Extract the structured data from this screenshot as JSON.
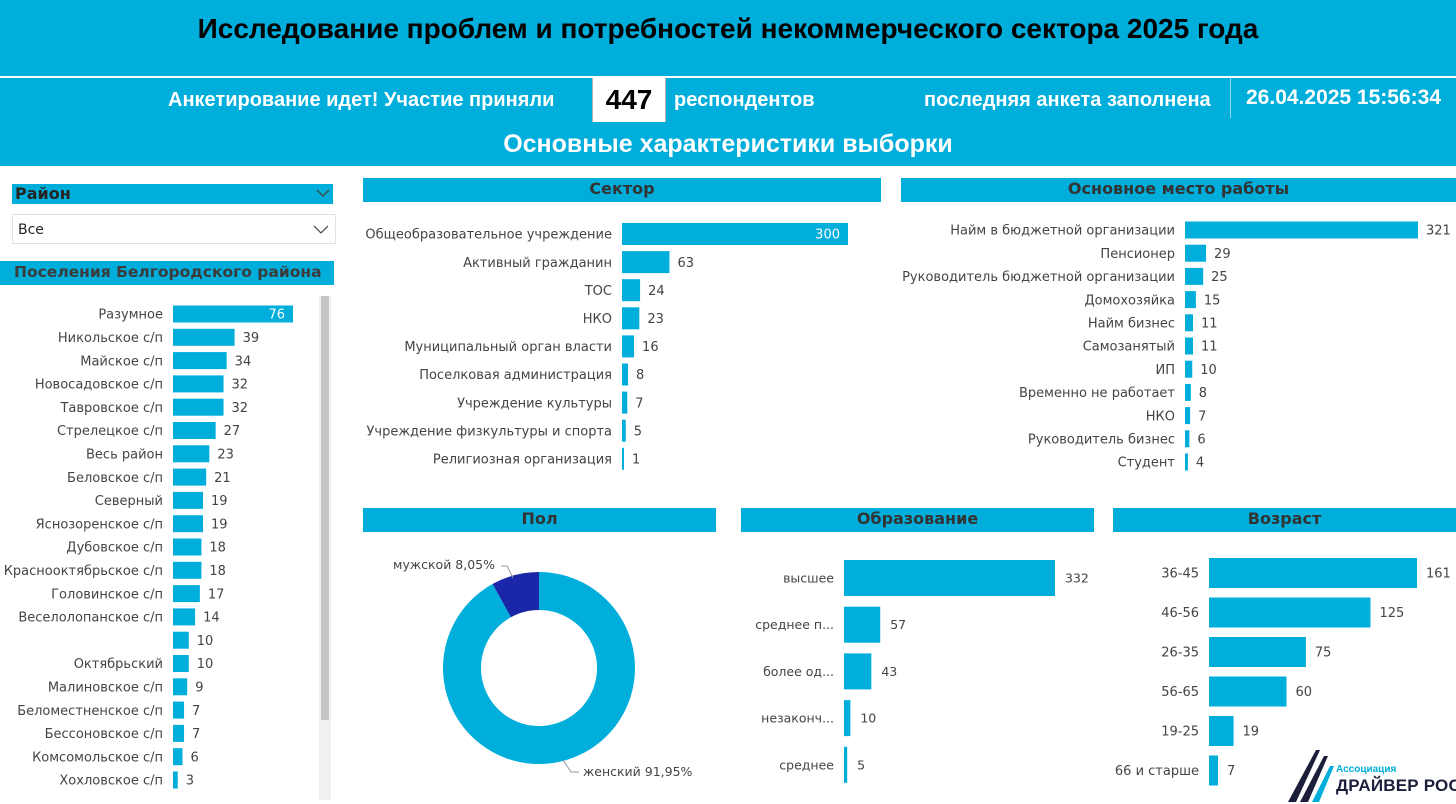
{
  "header": {
    "title": "Исследование проблем и потребностей некоммерческого сектора 2025 года",
    "status_prefix": "Анкетирование идет! Участие  приняли",
    "respondents_count": "447",
    "respondents_suffix": "респондентов",
    "last_form_label": "последняя анкета заполнена",
    "last_form_datetime": "26.04.2025 15:56:34",
    "subtitle": "Основные характеристики выборки"
  },
  "filter": {
    "label": "Район",
    "selected": "Все"
  },
  "colors": {
    "accent": "#00AEDB",
    "dark_blue": "#1a27a8",
    "text": "#252423"
  },
  "icons": [
    "chevron-down-icon",
    "scroll-bar",
    "logo-mark-icon"
  ],
  "settlements": {
    "title": "Поселения Белгородского района",
    "chart_data": {
      "type": "bar",
      "orientation": "horizontal",
      "categories": [
        "Разумное",
        "Никольское с/п",
        "Майское с/п",
        "Новосадовское с/п",
        "Тавровское с/п",
        "Стрелецкое с/п",
        "Весь район",
        "Беловское с/п",
        "Северный",
        "Яснозоренское с/п",
        "Дубовское с/п",
        "Краснооктябрьское с/п",
        "Головинское с/п",
        "Веселолопанское с/п",
        "",
        "Октябрьский",
        "Малиновское с/п",
        "Беломестненское с/п",
        "Бессоновское с/п",
        "Комсомольское с/п",
        "Хохловское с/п"
      ],
      "values": [
        76,
        39,
        34,
        32,
        32,
        27,
        23,
        21,
        19,
        19,
        18,
        18,
        17,
        14,
        10,
        10,
        9,
        7,
        7,
        6,
        3
      ]
    }
  },
  "sector": {
    "title": "Сектор",
    "chart_data": {
      "type": "bar",
      "orientation": "horizontal",
      "categories": [
        "Общеобразовательное учреждение",
        "Активный гражданин",
        "ТОС",
        "НКО",
        "Муниципальный орган власти",
        "Поселковая администрация",
        "Учреждение культуры",
        "Учреждение физкультуры и спорта",
        "Религиозная организация"
      ],
      "values": [
        300,
        63,
        24,
        23,
        16,
        8,
        7,
        5,
        1
      ]
    }
  },
  "workplace": {
    "title": "Основное место работы",
    "chart_data": {
      "type": "bar",
      "orientation": "horizontal",
      "categories": [
        "Найм в бюджетной организации",
        "Пенсионер",
        "Руководитель бюджетной организации",
        "Домохозяйка",
        "Найм бизнес",
        "Самозанятый",
        "ИП",
        "Временно не работает",
        "НКО",
        "Руководитель бизнес",
        "Студент"
      ],
      "values": [
        321,
        29,
        25,
        15,
        11,
        11,
        10,
        8,
        7,
        6,
        4
      ]
    }
  },
  "gender": {
    "title": "Пол",
    "chart_data": {
      "type": "pie",
      "donut": true,
      "categories": [
        "женский",
        "мужской"
      ],
      "values": [
        91.95,
        8.05
      ],
      "labels": [
        "женский 91,95%",
        "мужской 8,05%"
      ],
      "colors": [
        "#00AEDB",
        "#1a27a8"
      ]
    }
  },
  "education": {
    "title": "Образование",
    "chart_data": {
      "type": "bar",
      "orientation": "horizontal",
      "categories": [
        "высшее",
        "среднее п...",
        "более од...",
        "незаконч...",
        "среднее"
      ],
      "values": [
        332,
        57,
        43,
        10,
        5
      ]
    }
  },
  "age": {
    "title": "Возраст",
    "chart_data": {
      "type": "bar",
      "orientation": "horizontal",
      "categories": [
        "36-45",
        "46-56",
        "26-35",
        "56-65",
        "19-25",
        "66 и старше"
      ],
      "values": [
        161,
        125,
        75,
        60,
        19,
        7
      ]
    }
  },
  "logo": {
    "small": "Ассоциация",
    "big": "ДРАЙВЕР РОСТА"
  }
}
